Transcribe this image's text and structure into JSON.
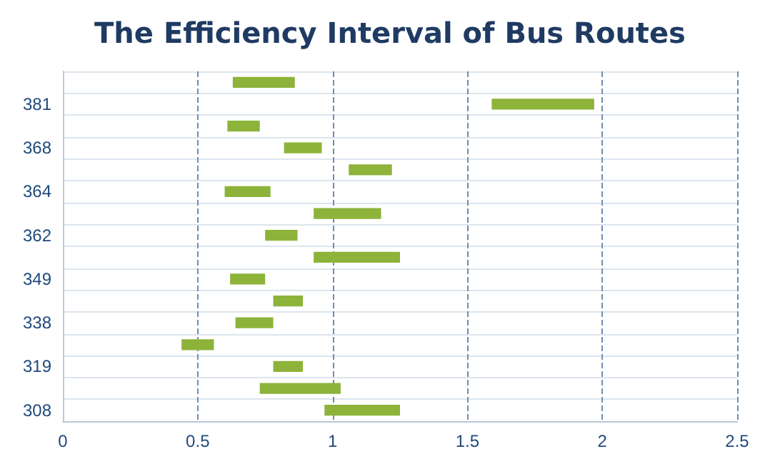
{
  "chart_data": {
    "type": "bar",
    "orientation": "horizontal",
    "title": "The Efficiency Interval of Bus Routes",
    "categories": [
      null,
      "381",
      null,
      "368",
      null,
      "364",
      null,
      "362",
      null,
      "349",
      null,
      "338",
      null,
      "319",
      null,
      "308"
    ],
    "base": [
      0.63,
      1.59,
      0.61,
      0.82,
      1.06,
      0.6,
      0.93,
      0.75,
      0.93,
      0.62,
      0.78,
      0.64,
      0.44,
      0.78,
      0.73,
      0.97
    ],
    "values": [
      0.23,
      0.38,
      0.12,
      0.14,
      0.16,
      0.17,
      0.25,
      0.12,
      0.32,
      0.13,
      0.11,
      0.14,
      0.12,
      0.11,
      0.3,
      0.28
    ],
    "color": "#8db33a",
    "xlim": [
      0,
      2.5
    ],
    "xticks": [
      0,
      0.5,
      1,
      1.5,
      2,
      2.5
    ],
    "grid": true
  }
}
